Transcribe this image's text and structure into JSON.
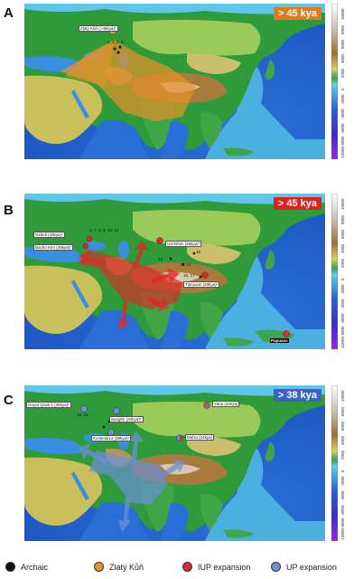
{
  "panels": [
    {
      "label": "A",
      "age": "> 45 kya",
      "age_color": "#e0791f",
      "sites": [
        {
          "text": "Zlatý Kůň (>45kya)*",
          "style": "box"
        },
        {
          "text": "2, 3, 4, 5",
          "style": "plain"
        }
      ],
      "ticks": [
        "10000",
        "8000",
        "6000",
        "4000",
        "2000",
        "0",
        "-2000",
        "-4000",
        "-6000",
        "-8000",
        "-10000"
      ]
    },
    {
      "label": "B",
      "age": "> 45 kya",
      "age_color": "#e02020",
      "sites": [
        {
          "text": "Ozbell (43kya)*",
          "style": "box"
        },
        {
          "text": "Bacho Kiro (45kya)*",
          "style": "box"
        },
        {
          "text": "6, 7, 8, 9, 10, 11",
          "style": "plain"
        },
        {
          "text": "Ust'Ishim (45kya)*",
          "style": "box"
        },
        {
          "text": "12",
          "style": "plain"
        },
        {
          "text": "13, 14",
          "style": "plain"
        },
        {
          "text": "15",
          "style": "plain"
        },
        {
          "text": "16, 17",
          "style": "plain"
        },
        {
          "text": "Tianyuan (40kya)*",
          "style": "box"
        },
        {
          "text": "Papuans",
          "style": "dark"
        }
      ],
      "ticks": [
        "10000",
        "8000",
        "6000",
        "4000",
        "2000",
        "0",
        "-2000",
        "-4000",
        "-6000",
        "-8000",
        "-10000"
      ]
    },
    {
      "label": "C",
      "age": "> 38 kya",
      "age_color": "#3a64c0",
      "sites": [
        {
          "text": "Goyet Q116-1 (35kya)*",
          "style": "box"
        },
        {
          "text": "18, 19",
          "style": "plain"
        },
        {
          "text": "Sunghir (34kya)*",
          "style": "box"
        },
        {
          "text": "Kostenki14 (38kya)*",
          "style": "box"
        },
        {
          "text": "Yana (32kya)",
          "style": "box"
        },
        {
          "text": "Mal'ta (24kya)",
          "style": "box"
        }
      ],
      "ticks": [
        "10000",
        "8000",
        "6000",
        "4000",
        "2000",
        "0",
        "-2000",
        "-4000",
        "-6000",
        "-8000",
        "-10000"
      ]
    }
  ],
  "legend": [
    {
      "label": "Archaic",
      "color": "#111111"
    },
    {
      "label": "Zlatý Kůň",
      "color": "#e8922a"
    },
    {
      "label": "IUP expansion",
      "color": "#e02828"
    },
    {
      "label": "UP expansion",
      "color": "#6b8fd8"
    }
  ],
  "colors": {
    "ocean_deep": "#1f5fc8",
    "ocean_shelf": "#5fc6e8",
    "lowland": "#2e9a3a",
    "upland": "#9acb5a",
    "mountain": "#a77b3b",
    "high": "#e8e4df"
  }
}
